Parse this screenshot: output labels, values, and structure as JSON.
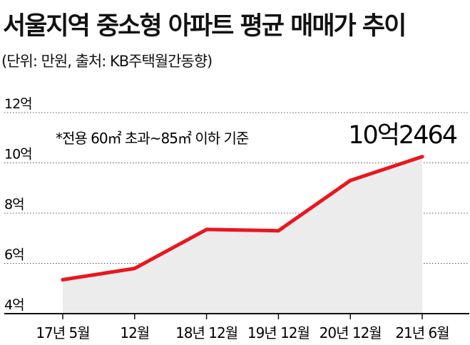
{
  "title": "서울지역 중소형 아파트 평균 매매가 추이",
  "subtitle": "(단위: 만원, 출처: KB주택월간동향)",
  "chart_data": {
    "type": "area",
    "categories": [
      "17년 5월",
      "12월",
      "18년 12월",
      "19년 12월",
      "20년 12월",
      "21년 6월"
    ],
    "values": [
      53500,
      58000,
      73500,
      73000,
      93000,
      102464
    ],
    "point_labels": [
      "",
      "",
      "",
      "",
      "",
      "10억2464"
    ],
    "y_tick_labels": [
      "4억",
      "6억",
      "8억",
      "10억",
      "12억"
    ],
    "y_ticks": [
      40000,
      60000,
      80000,
      100000,
      120000
    ],
    "ylim": [
      40000,
      120000
    ],
    "annotation": "*전용 60㎡ 초과~85㎡ 이하 기준",
    "line_color": "#e8171f",
    "area_color": "#ececec",
    "grid": true
  }
}
